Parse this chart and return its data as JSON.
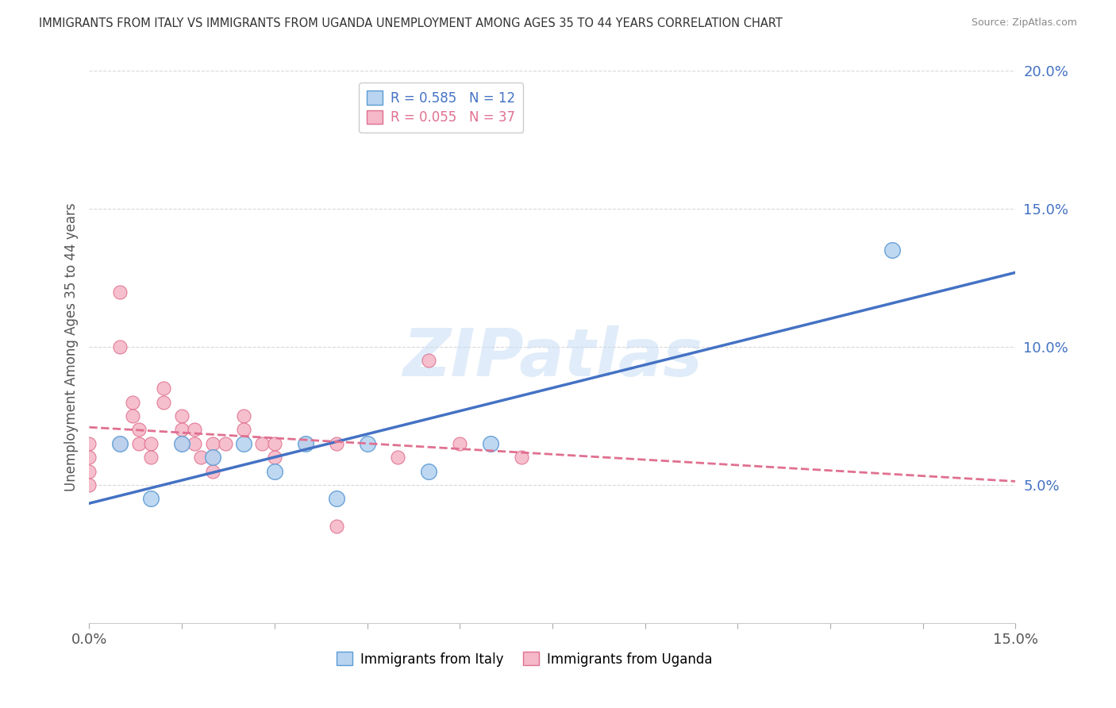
{
  "title": "IMMIGRANTS FROM ITALY VS IMMIGRANTS FROM UGANDA UNEMPLOYMENT AMONG AGES 35 TO 44 YEARS CORRELATION CHART",
  "source": "Source: ZipAtlas.com",
  "ylabel": "Unemployment Among Ages 35 to 44 years",
  "xlim": [
    0.0,
    0.15
  ],
  "ylim": [
    0.0,
    0.2
  ],
  "yticks": [
    0.05,
    0.1,
    0.15,
    0.2
  ],
  "ytick_labels": [
    "5.0%",
    "10.0%",
    "15.0%",
    "20.0%"
  ],
  "xtick_labels_edge": [
    "0.0%",
    "15.0%"
  ],
  "italy_R": 0.585,
  "italy_N": 12,
  "uganda_R": 0.055,
  "uganda_N": 37,
  "italy_color": "#b8d4f0",
  "italy_edge_color": "#5b9bd5",
  "uganda_color": "#f5b8c8",
  "uganda_edge_color": "#e07090",
  "italy_line_color": "#4472c4",
  "uganda_line_color": "#e07090",
  "italy_x": [
    0.005,
    0.01,
    0.015,
    0.02,
    0.025,
    0.03,
    0.035,
    0.04,
    0.045,
    0.055,
    0.065,
    0.13
  ],
  "italy_y": [
    0.065,
    0.045,
    0.065,
    0.06,
    0.065,
    0.055,
    0.065,
    0.045,
    0.065,
    0.055,
    0.065,
    0.135
  ],
  "uganda_x": [
    0.0,
    0.0,
    0.0,
    0.0,
    0.005,
    0.005,
    0.005,
    0.007,
    0.007,
    0.008,
    0.008,
    0.01,
    0.01,
    0.012,
    0.012,
    0.015,
    0.015,
    0.015,
    0.017,
    0.017,
    0.018,
    0.02,
    0.02,
    0.02,
    0.022,
    0.025,
    0.025,
    0.028,
    0.03,
    0.03,
    0.035,
    0.04,
    0.04,
    0.05,
    0.055,
    0.06,
    0.07
  ],
  "uganda_y": [
    0.065,
    0.06,
    0.055,
    0.05,
    0.12,
    0.1,
    0.065,
    0.08,
    0.075,
    0.07,
    0.065,
    0.065,
    0.06,
    0.085,
    0.08,
    0.075,
    0.07,
    0.065,
    0.07,
    0.065,
    0.06,
    0.065,
    0.06,
    0.055,
    0.065,
    0.075,
    0.07,
    0.065,
    0.065,
    0.06,
    0.065,
    0.065,
    0.035,
    0.06,
    0.095,
    0.065,
    0.06
  ],
  "watermark": "ZIPatlas",
  "background_color": "#ffffff",
  "grid_color": "#d8d8d8",
  "italy_scatter_size": 200,
  "uganda_scatter_size": 150,
  "num_xticks": 10
}
